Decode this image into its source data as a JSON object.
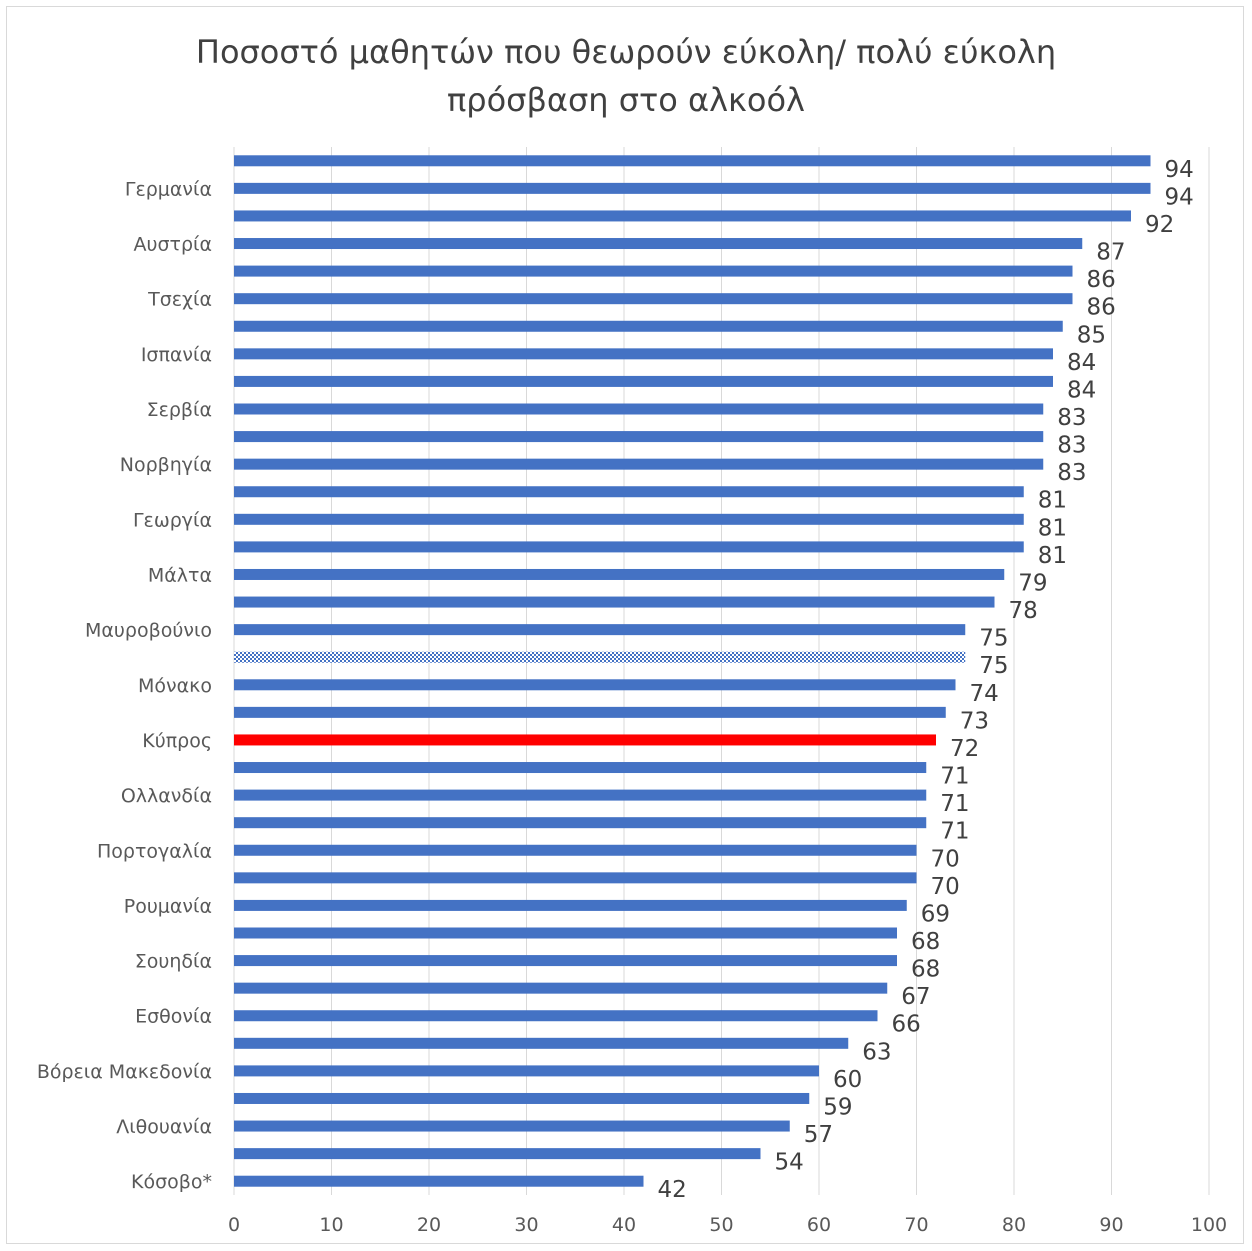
{
  "chart_data": {
    "type": "bar",
    "orientation": "horizontal",
    "title_lines": [
      "Ποσοστό μαθητών που θεωρούν εύκολη/ πολύ εύκολη",
      "πρόσβαση στο αλκοόλ"
    ],
    "values": [
      94,
      94,
      92,
      87,
      86,
      86,
      85,
      84,
      84,
      83,
      83,
      83,
      81,
      81,
      81,
      79,
      78,
      75,
      75,
      74,
      73,
      72,
      71,
      71,
      71,
      70,
      70,
      69,
      68,
      68,
      67,
      66,
      63,
      60,
      59,
      57,
      54,
      42
    ],
    "category_labels": [
      {
        "index": 1,
        "label": "Γερμανία"
      },
      {
        "index": 3,
        "label": "Αυστρία"
      },
      {
        "index": 5,
        "label": "Τσεχία"
      },
      {
        "index": 7,
        "label": "Ισπανία"
      },
      {
        "index": 9,
        "label": "Σερβία"
      },
      {
        "index": 11,
        "label": "Νορβηγία"
      },
      {
        "index": 13,
        "label": "Γεωργία"
      },
      {
        "index": 15,
        "label": "Μάλτα"
      },
      {
        "index": 17,
        "label": "Μαυροβούνιο"
      },
      {
        "index": 19,
        "label": "Μόνακο"
      },
      {
        "index": 21,
        "label": "Κύπρος"
      },
      {
        "index": 23,
        "label": "Ολλανδία"
      },
      {
        "index": 25,
        "label": "Πορτογαλία"
      },
      {
        "index": 27,
        "label": "Ρουμανία"
      },
      {
        "index": 29,
        "label": "Σουηδία"
      },
      {
        "index": 31,
        "label": "Εσθονία"
      },
      {
        "index": 33,
        "label": "Βόρεια Μακεδονία"
      },
      {
        "index": 35,
        "label": "Λιθουανία"
      },
      {
        "index": 37,
        "label": "Κόσοβο*"
      }
    ],
    "highlight": {
      "index": 21,
      "color": "#ff0000"
    },
    "patterned": {
      "index": 18
    },
    "bar_color": "#4472c4",
    "xlim": [
      0,
      100
    ],
    "xticks": [
      0,
      10,
      20,
      30,
      40,
      50,
      60,
      70,
      80,
      90,
      100
    ],
    "grid": true,
    "legend": "none"
  }
}
